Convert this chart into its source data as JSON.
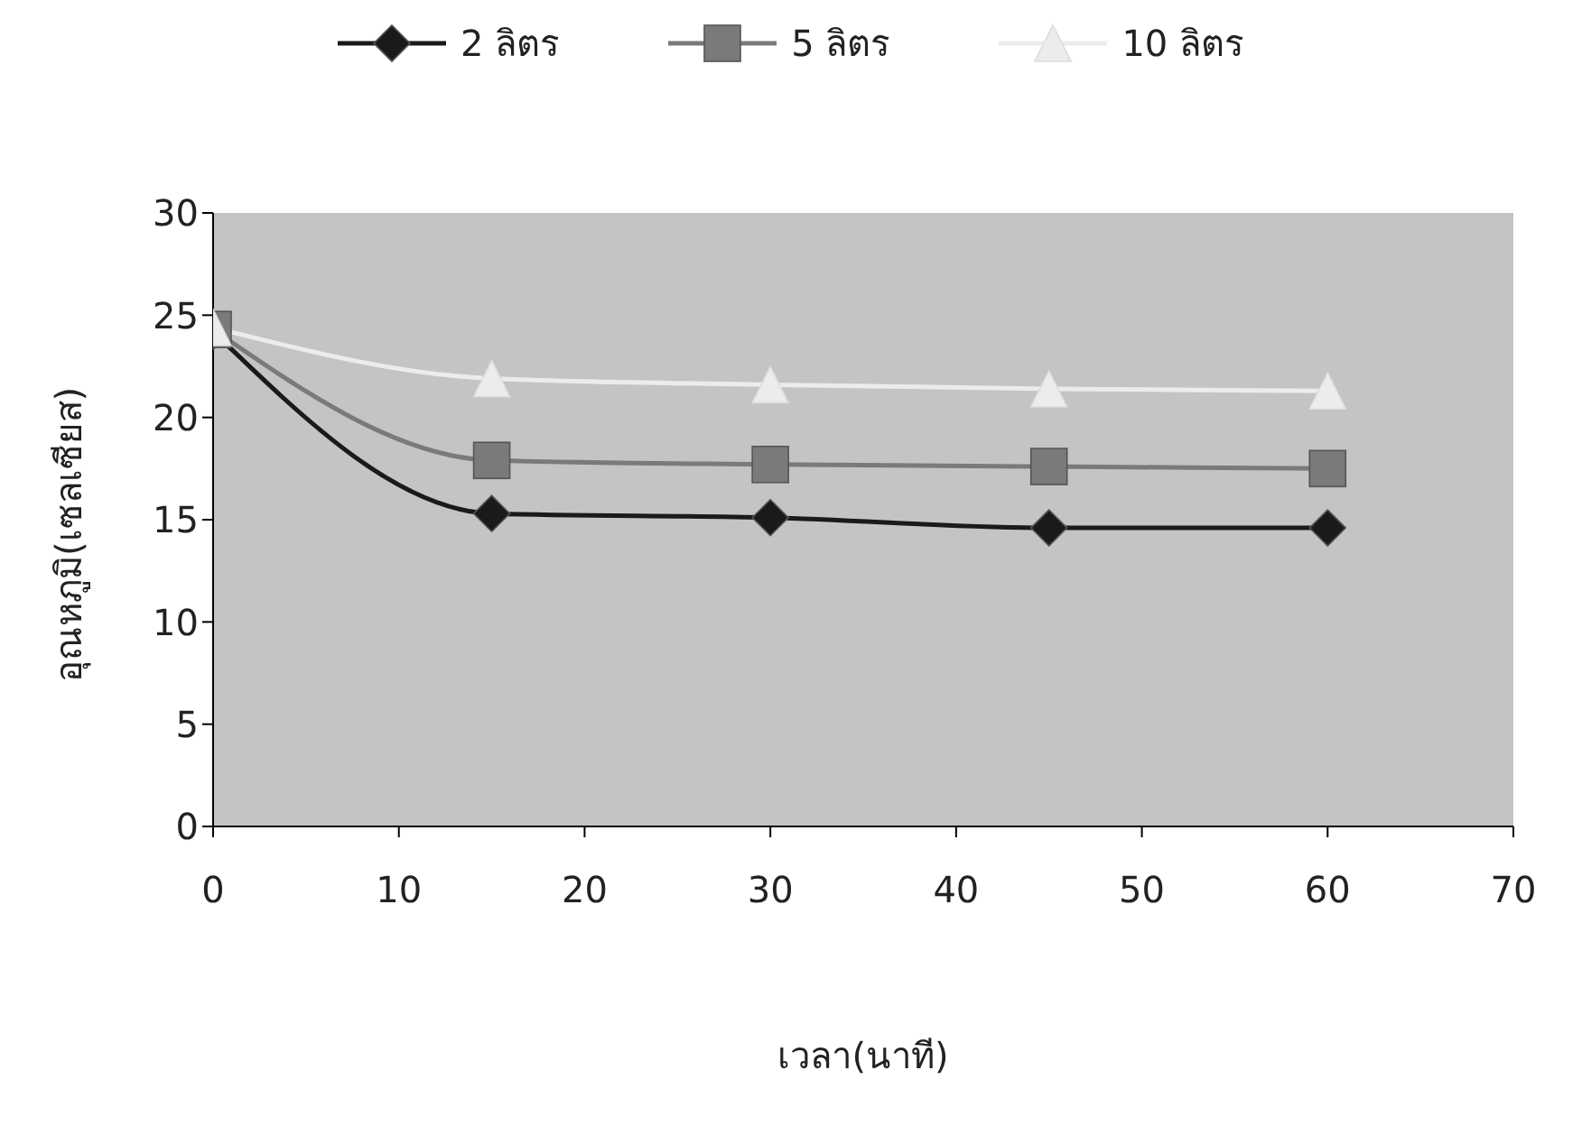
{
  "chart_data": {
    "type": "line",
    "xlabel": "เวลา(นาที)",
    "ylabel": "อุณหภูมิ(เซลเซียส)",
    "x": [
      0,
      15,
      30,
      45,
      60
    ],
    "series": [
      {
        "name": "2 ลิตร",
        "color": "#1a1a1a",
        "marker": "diamond",
        "values": [
          24.2,
          15.3,
          15.1,
          14.6,
          14.6
        ]
      },
      {
        "name": "5 ลิตร",
        "color": "#7a7a7a",
        "marker": "square",
        "values": [
          24.3,
          17.9,
          17.7,
          17.6,
          17.5
        ]
      },
      {
        "name": "10 ลิตร",
        "color": "#ececec",
        "marker": "triangle",
        "values": [
          24.4,
          21.9,
          21.6,
          21.4,
          21.3
        ]
      }
    ],
    "xlim": [
      0,
      70
    ],
    "xticks": [
      0,
      10,
      20,
      30,
      40,
      50,
      60,
      70
    ],
    "ylim": [
      0,
      30
    ],
    "yticks": [
      0,
      5,
      10,
      15,
      20,
      25,
      30
    ],
    "grid": false,
    "legend": "top"
  }
}
